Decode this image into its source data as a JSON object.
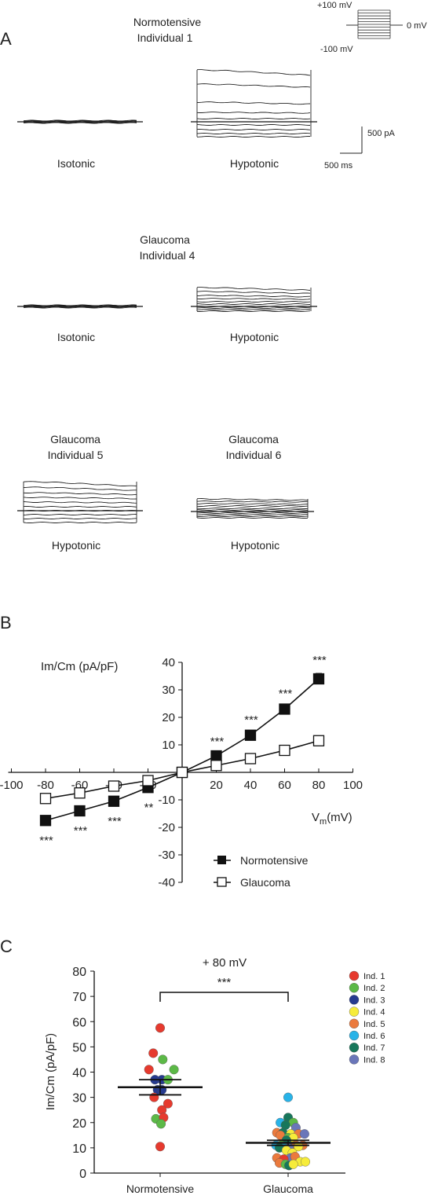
{
  "panel_a": {
    "label": "A",
    "protocol": {
      "top": "+100 mV",
      "mid": "0 mV",
      "bottom": "-100 mV"
    },
    "scale": {
      "current": "500 pA",
      "time": "500 ms"
    },
    "groups": [
      {
        "title_line1": "Normotensive",
        "title_line2": "Individual 1",
        "left_label": "Isotonic",
        "right_label": "Hypotonic"
      },
      {
        "title_line1": "Glaucoma",
        "title_line2": "Individual 4",
        "left_label": "Isotonic",
        "right_label": "Hypotonic"
      }
    ],
    "pair": [
      {
        "title_line1": "Glaucoma",
        "title_line2": "Individual 5",
        "label": "Hypotonic"
      },
      {
        "title_line1": "Glaucoma",
        "title_line2": "Individual 6",
        "label": "Hypotonic"
      }
    ]
  },
  "chart_data": [
    {
      "type": "line",
      "panel": "B",
      "ylabel": "Im/Cm (pA/pF)",
      "xlabel": "Vm(mV)",
      "xlabel_main": "V",
      "xlabel_sub": "m",
      "xlabel_rest": "(mV)",
      "xlim": [
        -100,
        100
      ],
      "ylim": [
        -40,
        40
      ],
      "xticks": [
        -100,
        -80,
        -60,
        -40,
        -20,
        0,
        20,
        40,
        60,
        80,
        100
      ],
      "yticks": [
        -40,
        -30,
        -20,
        -10,
        10,
        20,
        30,
        40
      ],
      "x": [
        -80,
        -60,
        -40,
        -20,
        0,
        20,
        40,
        60,
        80
      ],
      "series": [
        {
          "name": "Normotensive",
          "marker": "filled-square",
          "values": [
            -17.5,
            -14,
            -10.5,
            -5.5,
            0,
            6,
            13.5,
            23,
            34
          ],
          "errors": [
            0.8,
            0.6,
            0.6,
            0.5,
            0,
            0.5,
            0.8,
            0.8,
            2
          ],
          "annotations": [
            "***",
            "***",
            "***",
            "**",
            "",
            "***",
            "***",
            "***",
            "***"
          ]
        },
        {
          "name": "Glaucoma",
          "marker": "open-square",
          "values": [
            -9.5,
            -7.5,
            -5,
            -3,
            0,
            2.5,
            5,
            8,
            11.5
          ],
          "errors": [
            0.5,
            0.4,
            0.4,
            0.3,
            0,
            0.3,
            0.4,
            0.5,
            0.8
          ]
        }
      ],
      "legend": "bottom-right"
    },
    {
      "type": "scatter",
      "panel": "C",
      "title": "+ 80 mV",
      "ylabel": "Im/Cm (pA/pF)",
      "ylim": [
        0,
        80
      ],
      "yticks": [
        0,
        10,
        20,
        30,
        40,
        50,
        60,
        70,
        80
      ],
      "categories": [
        "Normotensive",
        "Glaucoma"
      ],
      "significance": "***",
      "means": [
        34,
        12
      ],
      "sem": [
        3,
        1
      ],
      "legend": "top-right",
      "individuals": [
        {
          "name": "Ind. 1",
          "color": "#e63a2e"
        },
        {
          "name": "Ind. 2",
          "color": "#5cb947"
        },
        {
          "name": "Ind. 3",
          "color": "#263a8f"
        },
        {
          "name": "Ind. 4",
          "color": "#f6ec3a"
        },
        {
          "name": "Ind. 5",
          "color": "#eb7a3d"
        },
        {
          "name": "Ind. 6",
          "color": "#28b3e8"
        },
        {
          "name": "Ind. 7",
          "color": "#17775b"
        },
        {
          "name": "Ind. 8",
          "color": "#6a76b9"
        }
      ],
      "points": [
        {
          "group": 0,
          "ind": 0,
          "jitter": 0.0,
          "y": 57.5
        },
        {
          "group": 0,
          "ind": 0,
          "jitter": -0.8,
          "y": 47.5
        },
        {
          "group": 0,
          "ind": 1,
          "jitter": 0.3,
          "y": 45
        },
        {
          "group": 0,
          "ind": 0,
          "jitter": -1.3,
          "y": 41
        },
        {
          "group": 0,
          "ind": 1,
          "jitter": 1.6,
          "y": 41
        },
        {
          "group": 0,
          "ind": 2,
          "jitter": -0.6,
          "y": 37
        },
        {
          "group": 0,
          "ind": 2,
          "jitter": 0.2,
          "y": 37
        },
        {
          "group": 0,
          "ind": 1,
          "jitter": 0.9,
          "y": 37
        },
        {
          "group": 0,
          "ind": 2,
          "jitter": -0.3,
          "y": 33
        },
        {
          "group": 0,
          "ind": 2,
          "jitter": 0.2,
          "y": 33
        },
        {
          "group": 0,
          "ind": 0,
          "jitter": -0.7,
          "y": 30
        },
        {
          "group": 0,
          "ind": 0,
          "jitter": 0.9,
          "y": 27.5
        },
        {
          "group": 0,
          "ind": 0,
          "jitter": 0.2,
          "y": 25
        },
        {
          "group": 0,
          "ind": 1,
          "jitter": -0.5,
          "y": 21.5
        },
        {
          "group": 0,
          "ind": 0,
          "jitter": 0.4,
          "y": 22
        },
        {
          "group": 0,
          "ind": 1,
          "jitter": 0.1,
          "y": 19.5
        },
        {
          "group": 0,
          "ind": 0,
          "jitter": 0.0,
          "y": 10.5
        },
        {
          "group": 1,
          "ind": 5,
          "jitter": 0.0,
          "y": 30
        },
        {
          "group": 1,
          "ind": 6,
          "jitter": 0.0,
          "y": 22
        },
        {
          "group": 1,
          "ind": 5,
          "jitter": -0.9,
          "y": 20
        },
        {
          "group": 1,
          "ind": 1,
          "jitter": 0.6,
          "y": 20
        },
        {
          "group": 1,
          "ind": 6,
          "jitter": -0.3,
          "y": 19
        },
        {
          "group": 1,
          "ind": 7,
          "jitter": 0.9,
          "y": 18
        },
        {
          "group": 1,
          "ind": 4,
          "jitter": -1.3,
          "y": 16
        },
        {
          "group": 1,
          "ind": 6,
          "jitter": -0.6,
          "y": 16
        },
        {
          "group": 1,
          "ind": 3,
          "jitter": 0.3,
          "y": 15.5
        },
        {
          "group": 1,
          "ind": 4,
          "jitter": 1.2,
          "y": 15.5
        },
        {
          "group": 1,
          "ind": 7,
          "jitter": 1.9,
          "y": 15.5
        },
        {
          "group": 1,
          "ind": 4,
          "jitter": -0.9,
          "y": 15
        },
        {
          "group": 1,
          "ind": 1,
          "jitter": 0.0,
          "y": 14
        },
        {
          "group": 1,
          "ind": 3,
          "jitter": 0.6,
          "y": 14
        },
        {
          "group": 1,
          "ind": 6,
          "jitter": -0.2,
          "y": 13
        },
        {
          "group": 1,
          "ind": 5,
          "jitter": -1.4,
          "y": 11
        },
        {
          "group": 1,
          "ind": 1,
          "jitter": -0.8,
          "y": 11
        },
        {
          "group": 1,
          "ind": 4,
          "jitter": 0.9,
          "y": 11
        },
        {
          "group": 1,
          "ind": 4,
          "jitter": 1.7,
          "y": 11
        },
        {
          "group": 1,
          "ind": 3,
          "jitter": 1.2,
          "y": 10.5
        },
        {
          "group": 1,
          "ind": 5,
          "jitter": -0.4,
          "y": 10.5
        },
        {
          "group": 1,
          "ind": 6,
          "jitter": -1.0,
          "y": 10
        },
        {
          "group": 1,
          "ind": 7,
          "jitter": 0.1,
          "y": 10
        },
        {
          "group": 1,
          "ind": 3,
          "jitter": -0.2,
          "y": 9
        },
        {
          "group": 1,
          "ind": 3,
          "jitter": 0.5,
          "y": 8
        },
        {
          "group": 1,
          "ind": 4,
          "jitter": -1.3,
          "y": 6
        },
        {
          "group": 1,
          "ind": 7,
          "jitter": 0.3,
          "y": 6
        },
        {
          "group": 1,
          "ind": 4,
          "jitter": 0.8,
          "y": 6.5
        },
        {
          "group": 1,
          "ind": 0,
          "jitter": -0.5,
          "y": 5.5
        },
        {
          "group": 1,
          "ind": 3,
          "jitter": 1.4,
          "y": 4.5
        },
        {
          "group": 1,
          "ind": 3,
          "jitter": 2.0,
          "y": 4.5
        },
        {
          "group": 1,
          "ind": 4,
          "jitter": -1.0,
          "y": 4
        },
        {
          "group": 1,
          "ind": 1,
          "jitter": -0.3,
          "y": 3.5
        },
        {
          "group": 1,
          "ind": 6,
          "jitter": 0.1,
          "y": 3
        },
        {
          "group": 1,
          "ind": 3,
          "jitter": 0.6,
          "y": 3.5
        }
      ]
    }
  ]
}
